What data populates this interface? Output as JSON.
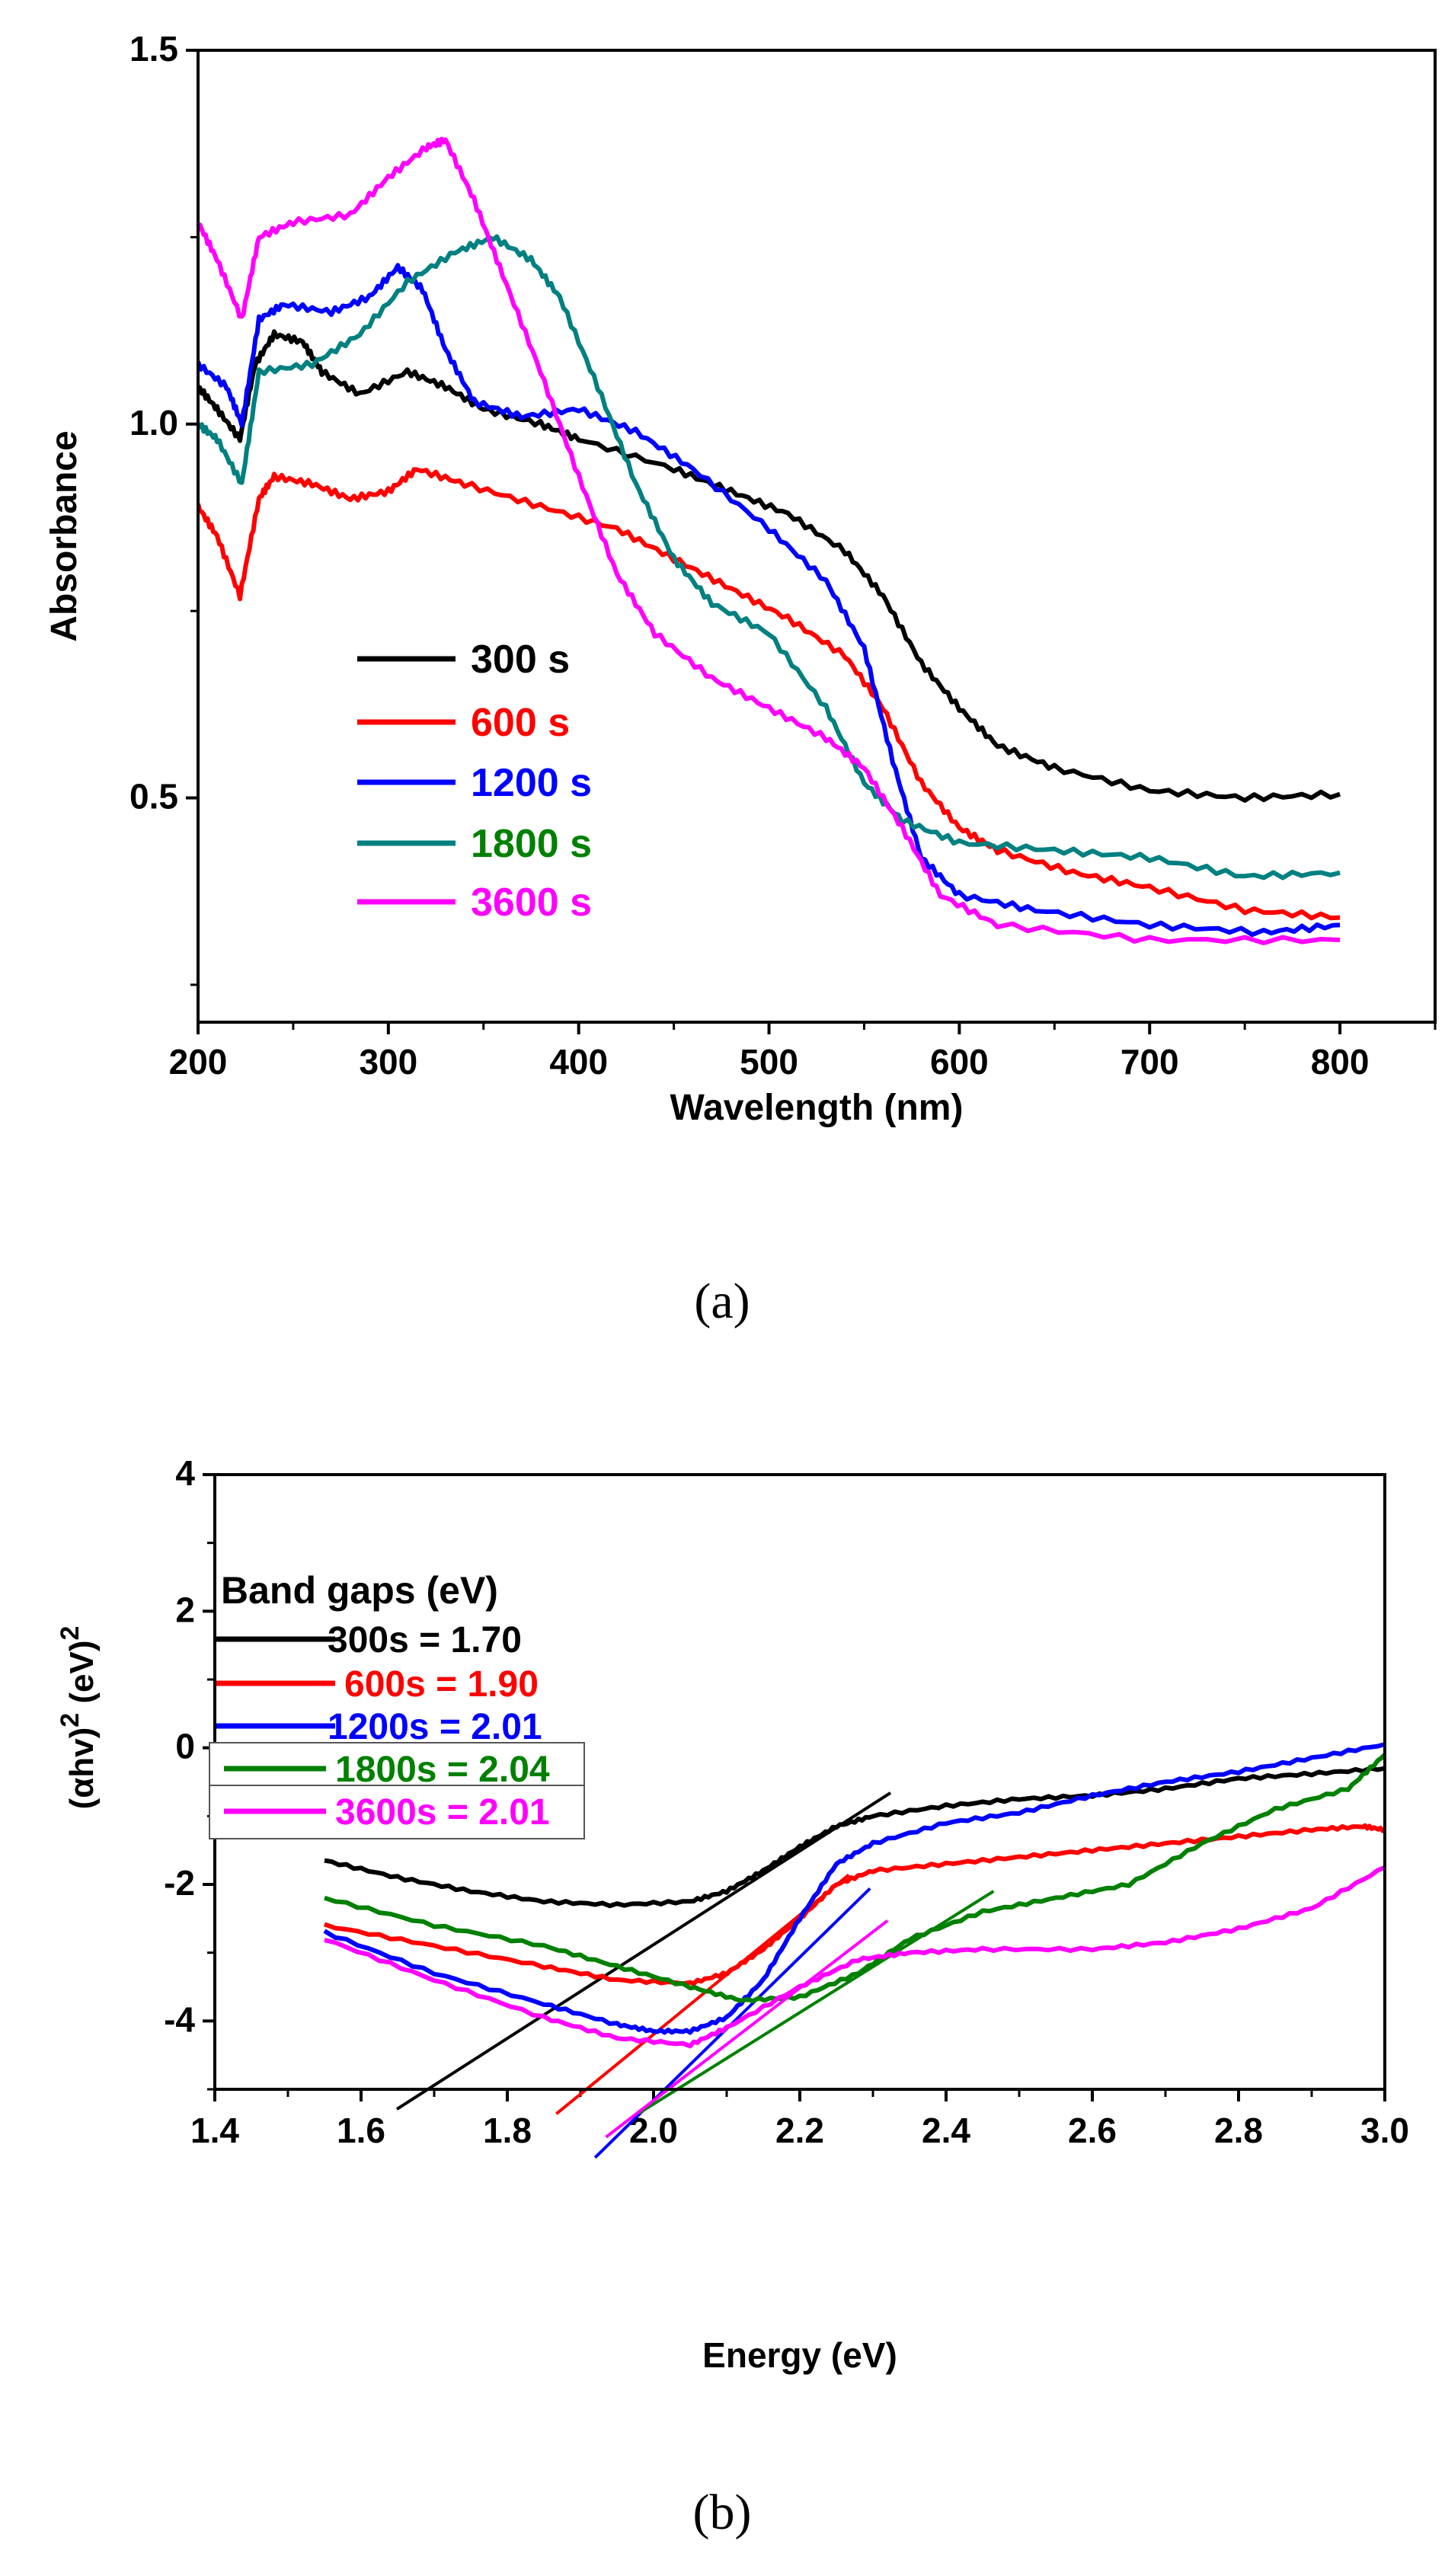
{
  "chart_data": [
    {
      "id": "a",
      "type": "line",
      "caption": "(a)",
      "title": "",
      "xlabel": "Wavelength (nm)",
      "ylabel": "Absorbance",
      "xlim": [
        200,
        850
      ],
      "ylim": [
        0.2,
        1.5
      ],
      "xticks": [
        200,
        300,
        400,
        500,
        600,
        700,
        800
      ],
      "xtick_labels": [
        "200",
        "300",
        "400",
        "500",
        "600",
        "700",
        "800"
      ],
      "yticks": [
        0.5,
        1.0,
        1.5
      ],
      "ytick_labels": [
        "0.5",
        "1.0",
        "1.5"
      ],
      "grid": false,
      "legend_position": "lower-left",
      "series": [
        {
          "name": "300 s",
          "color": "#000000",
          "label_color": "#000000",
          "x": [
            200,
            210,
            222,
            230,
            240,
            255,
            265,
            285,
            310,
            330,
            350,
            380,
            400,
            450,
            480,
            510,
            540,
            560,
            580,
            600,
            620,
            650,
            700,
            750,
            800
          ],
          "y": [
            1.05,
            1.02,
            0.98,
            1.08,
            1.12,
            1.11,
            1.07,
            1.04,
            1.07,
            1.05,
            1.02,
            1.0,
            0.98,
            0.94,
            0.91,
            0.88,
            0.83,
            0.77,
            0.68,
            0.62,
            0.57,
            0.54,
            0.51,
            0.5,
            0.505
          ]
        },
        {
          "name": "600 s",
          "color": "#ff0000",
          "label_color": "#ff0000",
          "x": [
            200,
            210,
            222,
            232,
            240,
            260,
            280,
            300,
            315,
            340,
            380,
            420,
            450,
            480,
            510,
            540,
            560,
            580,
            600,
            620,
            660,
            700,
            750,
            800
          ],
          "y": [
            0.89,
            0.85,
            0.77,
            0.9,
            0.93,
            0.92,
            0.9,
            0.91,
            0.94,
            0.92,
            0.89,
            0.86,
            0.82,
            0.78,
            0.74,
            0.69,
            0.62,
            0.52,
            0.46,
            0.43,
            0.4,
            0.38,
            0.35,
            0.34
          ]
        },
        {
          "name": "1200 s",
          "color": "#0000ff",
          "label_color": "#0000ff",
          "x": [
            200,
            215,
            223,
            232,
            245,
            270,
            290,
            305,
            318,
            330,
            345,
            370,
            400,
            430,
            460,
            500,
            530,
            550,
            565,
            580,
            600,
            640,
            700,
            760,
            800
          ],
          "y": [
            1.08,
            1.05,
            1.0,
            1.14,
            1.16,
            1.15,
            1.17,
            1.21,
            1.18,
            1.1,
            1.03,
            1.01,
            1.02,
            0.99,
            0.94,
            0.86,
            0.79,
            0.7,
            0.55,
            0.42,
            0.37,
            0.35,
            0.33,
            0.32,
            0.33
          ]
        },
        {
          "name": "1800 s",
          "color": "#008080",
          "label_color": "#008000",
          "x": [
            200,
            210,
            223,
            232,
            260,
            285,
            310,
            335,
            355,
            375,
            390,
            410,
            430,
            450,
            470,
            500,
            530,
            550,
            570,
            600,
            650,
            700,
            750,
            800
          ],
          "y": [
            1.0,
            0.98,
            0.92,
            1.07,
            1.08,
            1.12,
            1.19,
            1.23,
            1.25,
            1.22,
            1.17,
            1.05,
            0.92,
            0.82,
            0.76,
            0.72,
            0.62,
            0.52,
            0.47,
            0.44,
            0.43,
            0.42,
            0.395,
            0.4
          ]
        },
        {
          "name": "3600 s",
          "color": "#ff00ff",
          "label_color": "#ff00ff",
          "x": [
            200,
            210,
            223,
            232,
            250,
            280,
            300,
            320,
            330,
            345,
            360,
            380,
            400,
            420,
            440,
            470,
            500,
            530,
            550,
            570,
            590,
            620,
            700,
            800
          ],
          "y": [
            1.27,
            1.22,
            1.14,
            1.25,
            1.27,
            1.28,
            1.33,
            1.37,
            1.38,
            1.3,
            1.2,
            1.07,
            0.93,
            0.8,
            0.72,
            0.66,
            0.62,
            0.58,
            0.54,
            0.46,
            0.37,
            0.33,
            0.31,
            0.31
          ]
        }
      ]
    },
    {
      "id": "b",
      "type": "line",
      "caption": "(b)",
      "title": "",
      "xlabel": "Energy (eV)",
      "ylabel_main": "(αhv)",
      "ylabel_sup1": "2",
      "ylabel_unit": " (eV)",
      "ylabel_sup2": "2",
      "xlim": [
        1.4,
        3.0
      ],
      "ylim": [
        -5,
        4
      ],
      "xticks": [
        1.4,
        1.6,
        1.8,
        2.0,
        2.2,
        2.4,
        2.6,
        2.8,
        3.0
      ],
      "xtick_labels": [
        "1.4",
        "1.6",
        "1.8",
        "2.0",
        "2.2",
        "2.4",
        "2.6",
        "2.8",
        "3.0"
      ],
      "yticks": [
        -4,
        -2,
        0,
        2,
        4
      ],
      "ytick_labels": [
        "-4",
        "-2",
        "0",
        "2",
        "4"
      ],
      "grid": false,
      "legend_title": "Band gaps (eV)",
      "legend_position": "top-left",
      "series": [
        {
          "name": "300s = 1.70",
          "color": "#000000",
          "boxed": false,
          "x": [
            1.55,
            1.65,
            1.75,
            1.85,
            1.95,
            2.05,
            2.1,
            2.15,
            2.2,
            2.25,
            2.3,
            2.4,
            2.5,
            2.6,
            2.7,
            2.8,
            2.9,
            3.0
          ],
          "y": [
            -1.65,
            -1.9,
            -2.1,
            -2.25,
            -2.3,
            -2.25,
            -2.1,
            -1.8,
            -1.45,
            -1.15,
            -1.0,
            -0.85,
            -0.75,
            -0.7,
            -0.6,
            -0.45,
            -0.38,
            -0.3
          ],
          "tangent": {
            "x": [
              1.649,
              2.324
            ],
            "y": [
              -5.29,
              -0.66
            ]
          }
        },
        {
          "name": "600s = 1.90",
          "color": "#ff0000",
          "boxed": false,
          "x": [
            1.55,
            1.7,
            1.85,
            1.95,
            2.05,
            2.1,
            2.15,
            2.2,
            2.25,
            2.3,
            2.4,
            2.5,
            2.6,
            2.7,
            2.8,
            2.9,
            2.97,
            3.0
          ],
          "y": [
            -2.6,
            -2.9,
            -3.2,
            -3.4,
            -3.45,
            -3.3,
            -2.95,
            -2.5,
            -2.0,
            -1.8,
            -1.7,
            -1.6,
            -1.5,
            -1.4,
            -1.3,
            -1.2,
            -1.15,
            -1.2
          ],
          "tangent": {
            "x": [
              1.867,
              2.267
            ],
            "y": [
              -5.36,
              -1.86
            ]
          }
        },
        {
          "name": "1200s = 2.01",
          "color": "#0000ff",
          "boxed": false,
          "x": [
            1.55,
            1.7,
            1.85,
            1.95,
            2.0,
            2.05,
            2.1,
            2.15,
            2.2,
            2.25,
            2.3,
            2.4,
            2.5,
            2.6,
            2.7,
            2.8,
            2.9,
            3.0
          ],
          "y": [
            -2.7,
            -3.3,
            -3.75,
            -4.05,
            -4.15,
            -4.15,
            -3.95,
            -3.4,
            -2.5,
            -1.7,
            -1.4,
            -1.1,
            -0.95,
            -0.7,
            -0.5,
            -0.35,
            -0.15,
            0.05
          ],
          "tangent": {
            "x": [
              1.92,
              2.296
            ],
            "y": [
              -6.0,
              -2.06
            ]
          }
        },
        {
          "name": "1800s = 2.04",
          "color": "#008000",
          "boxed": true,
          "x": [
            1.55,
            1.7,
            1.85,
            1.95,
            2.05,
            2.12,
            2.2,
            2.28,
            2.35,
            2.45,
            2.55,
            2.65,
            2.75,
            2.85,
            2.95,
            3.0
          ],
          "y": [
            -2.2,
            -2.6,
            -2.9,
            -3.2,
            -3.5,
            -3.7,
            -3.65,
            -3.3,
            -2.8,
            -2.4,
            -2.2,
            -2.0,
            -1.4,
            -0.9,
            -0.6,
            -0.1
          ],
          "tangent": {
            "x": [
              1.98,
              2.465
            ],
            "y": [
              -5.35,
              -2.1
            ]
          }
        },
        {
          "name": "3600s = 2.01",
          "color": "#ff00ff",
          "boxed": true,
          "x": [
            1.55,
            1.7,
            1.85,
            1.95,
            2.05,
            2.1,
            2.2,
            2.28,
            2.35,
            2.45,
            2.6,
            2.7,
            2.8,
            2.9,
            3.0
          ],
          "y": [
            -2.8,
            -3.4,
            -3.95,
            -4.25,
            -4.35,
            -4.1,
            -3.5,
            -3.1,
            -3.0,
            -2.95,
            -2.95,
            -2.85,
            -2.65,
            -2.35,
            -1.75
          ],
          "tangent": {
            "x": [
              1.935,
              2.32
            ],
            "y": [
              -5.7,
              -2.53
            ]
          }
        }
      ]
    }
  ]
}
